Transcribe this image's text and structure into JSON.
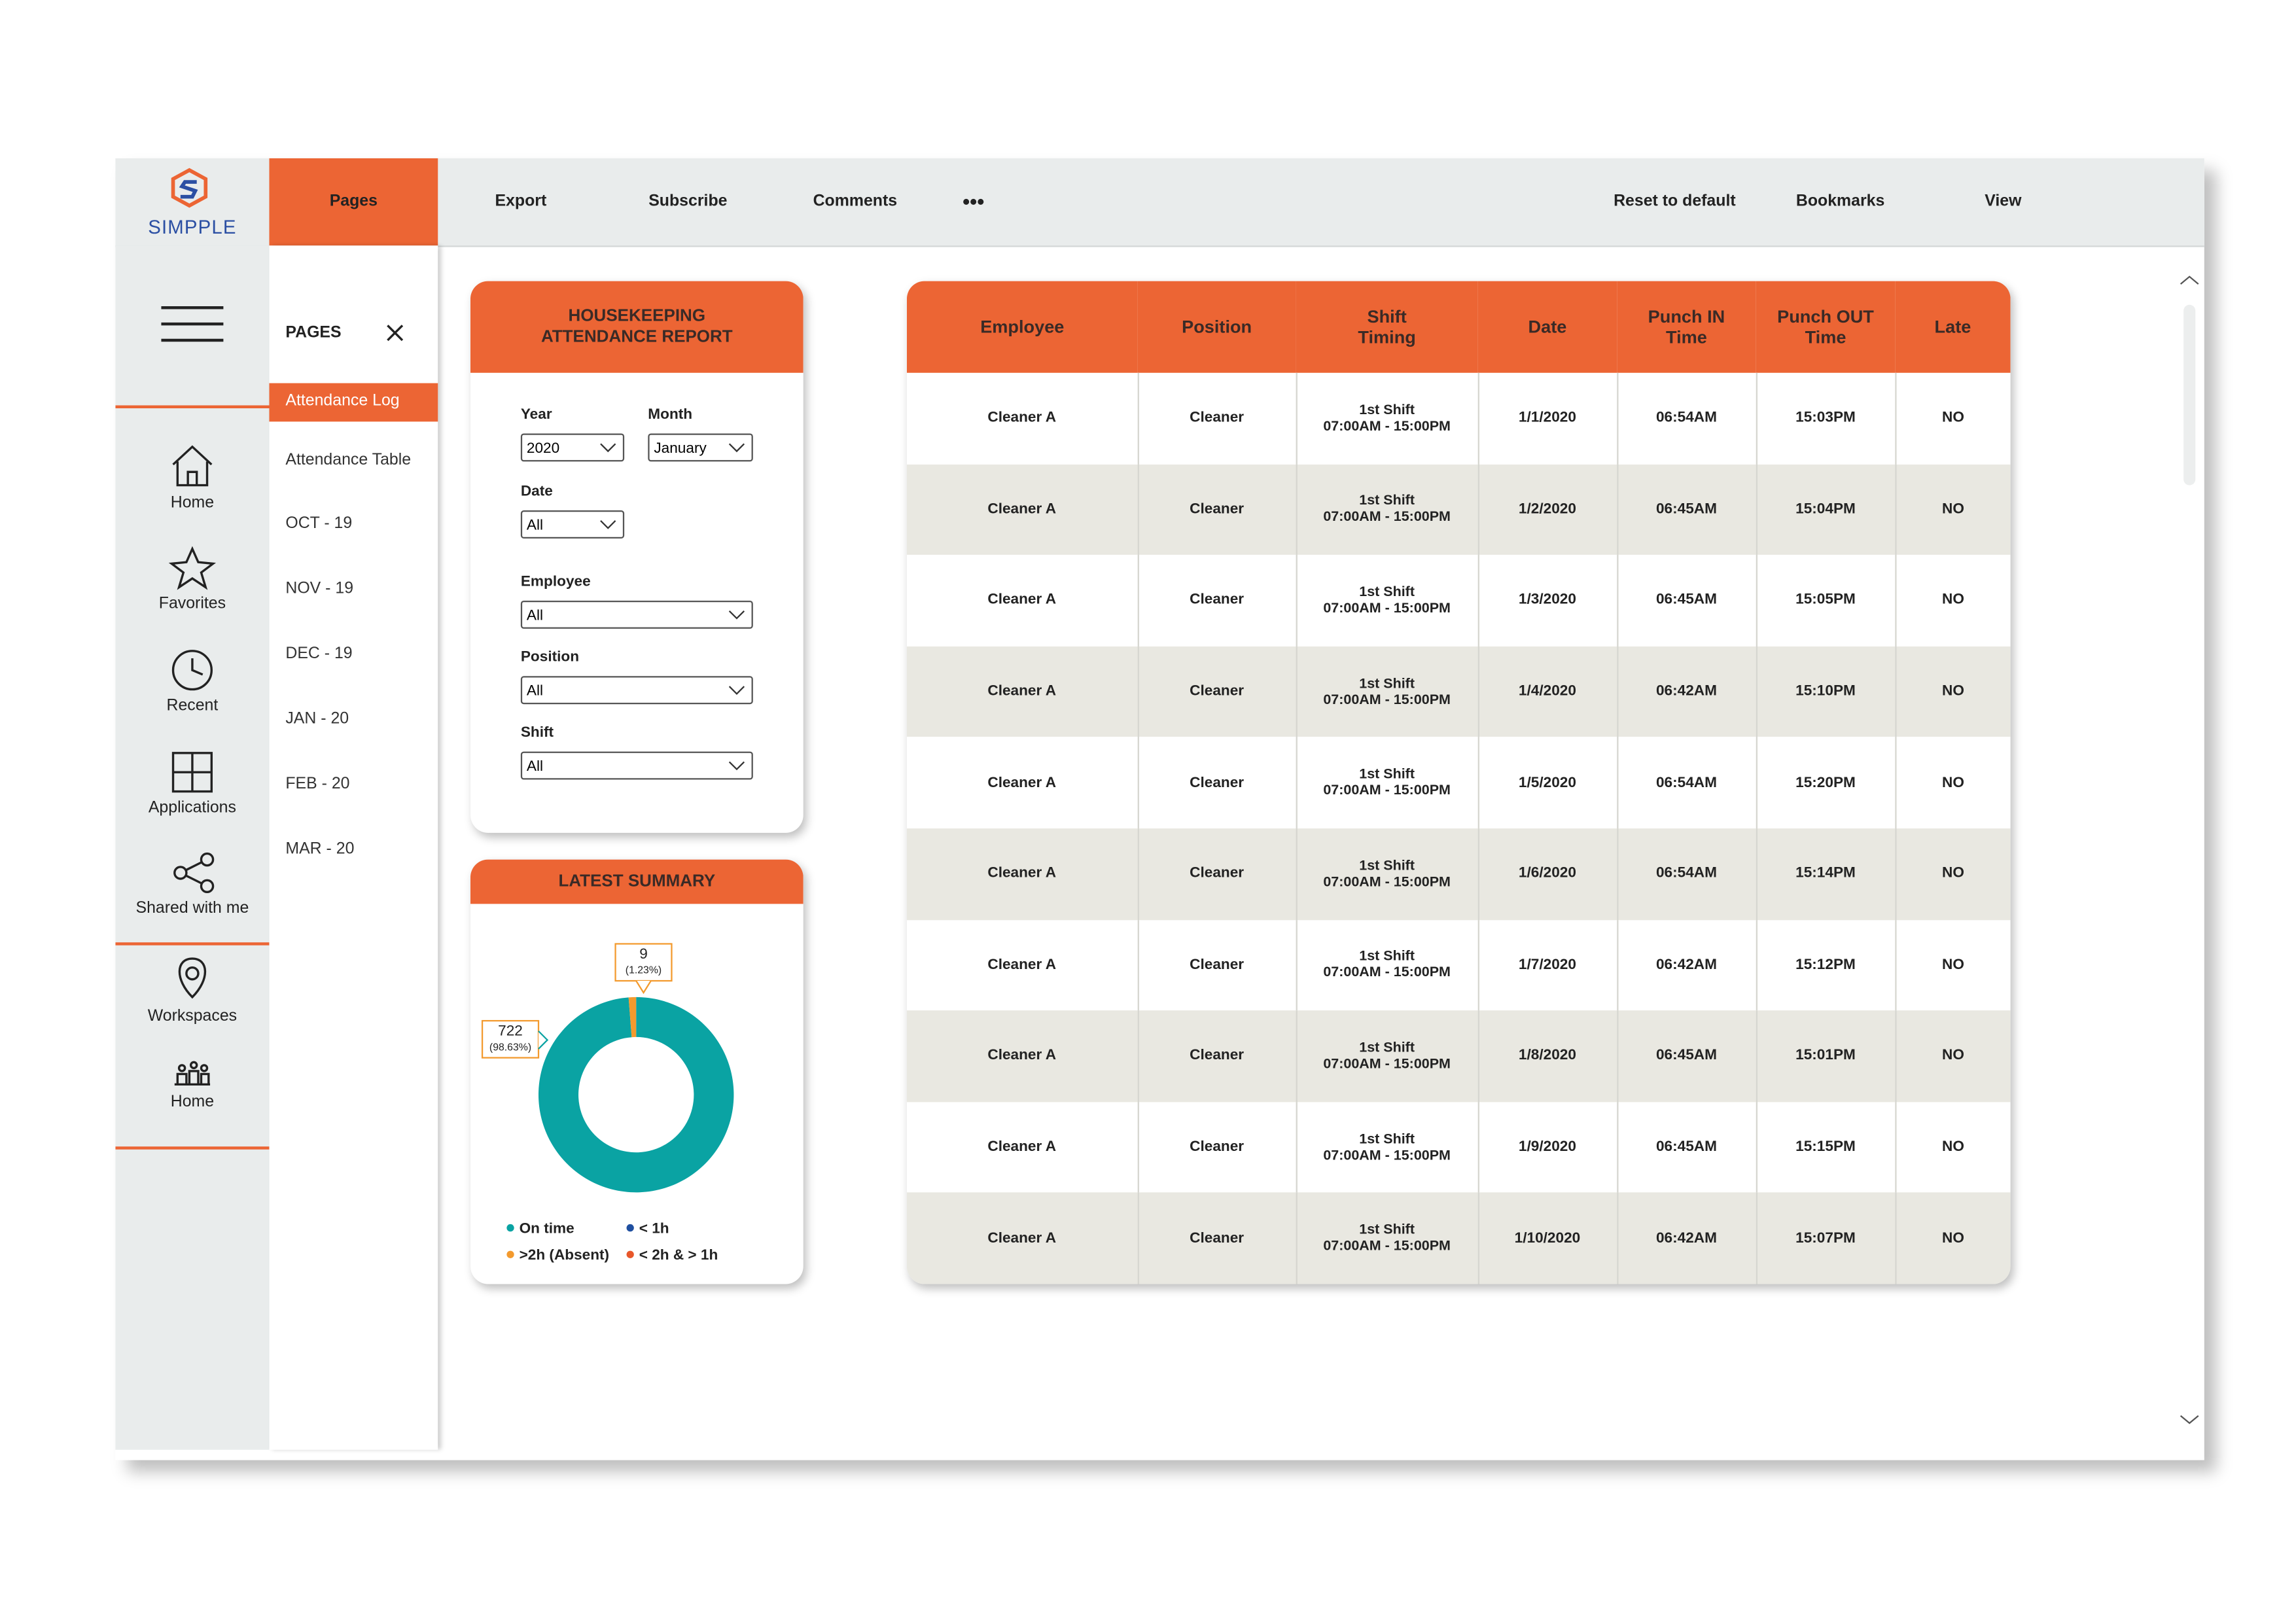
{
  "header": {
    "brand": "SIMPPLE",
    "tabs": [
      "Pages",
      "Export",
      "Subscribe",
      "Comments",
      "•••",
      "Reset to default",
      "Bookmarks",
      "View"
    ]
  },
  "sidebar": {
    "items": [
      "Home",
      "Favorites",
      "Recent",
      "Applications",
      "Shared with me",
      "Workspaces",
      "Home"
    ]
  },
  "pages_panel": {
    "title": "PAGES",
    "items": [
      "Attendance Log",
      "Attendance Table",
      "OCT - 19",
      "NOV - 19",
      "DEC - 19",
      "JAN - 20",
      "FEB - 20",
      "MAR - 20"
    ]
  },
  "filters": {
    "title": "HOUSEKEEPING\nATTENDANCE REPORT",
    "fields": [
      {
        "label": "Year",
        "value": "2020"
      },
      {
        "label": "Month",
        "value": "January"
      },
      {
        "label": "Date",
        "value": "All"
      },
      {
        "label": "Employee",
        "value": "All"
      },
      {
        "label": "Position",
        "value": "All"
      },
      {
        "label": "Shift",
        "value": "All"
      }
    ]
  },
  "summary": {
    "title": "LATEST SUMMARY",
    "chart_data": {
      "type": "donut",
      "categories": [
        "On time",
        "< 1h",
        ">2h (Absent)",
        "< 2h & > 1h"
      ],
      "colors": [
        "#0aa3a3",
        "#1f4fa0",
        "#f39a2e",
        "#e8572a"
      ],
      "values": [
        722,
        null,
        9,
        null
      ],
      "percent_labels": [
        "(98.63%)",
        null,
        "(1.23%)",
        null
      ]
    }
  },
  "table": {
    "columns": [
      "Employee",
      "Position",
      "Shift\nTiming",
      "Date",
      "Punch IN\nTime",
      "Punch OUT\nTime",
      "Late"
    ],
    "rows": [
      [
        "Cleaner A",
        "Cleaner",
        "1st Shift\n07:00AM - 15:00PM",
        "1/1/2020",
        "06:54AM",
        "15:03PM",
        "NO"
      ],
      [
        "Cleaner A",
        "Cleaner",
        "1st Shift\n07:00AM - 15:00PM",
        "1/2/2020",
        "06:45AM",
        "15:04PM",
        "NO"
      ],
      [
        "Cleaner A",
        "Cleaner",
        "1st Shift\n07:00AM - 15:00PM",
        "1/3/2020",
        "06:45AM",
        "15:05PM",
        "NO"
      ],
      [
        "Cleaner A",
        "Cleaner",
        "1st Shift\n07:00AM - 15:00PM",
        "1/4/2020",
        "06:42AM",
        "15:10PM",
        "NO"
      ],
      [
        "Cleaner A",
        "Cleaner",
        "1st Shift\n07:00AM - 15:00PM",
        "1/5/2020",
        "06:54AM",
        "15:20PM",
        "NO"
      ],
      [
        "Cleaner A",
        "Cleaner",
        "1st Shift\n07:00AM - 15:00PM",
        "1/6/2020",
        "06:54AM",
        "15:14PM",
        "NO"
      ],
      [
        "Cleaner A",
        "Cleaner",
        "1st Shift\n07:00AM - 15:00PM",
        "1/7/2020",
        "06:42AM",
        "15:12PM",
        "NO"
      ],
      [
        "Cleaner A",
        "Cleaner",
        "1st Shift\n07:00AM - 15:00PM",
        "1/8/2020",
        "06:45AM",
        "15:01PM",
        "NO"
      ],
      [
        "Cleaner A",
        "Cleaner",
        "1st Shift\n07:00AM - 15:00PM",
        "1/9/2020",
        "06:45AM",
        "15:15PM",
        "NO"
      ],
      [
        "Cleaner A",
        "Cleaner",
        "1st Shift\n07:00AM - 15:00PM",
        "1/10/2020",
        "06:42AM",
        "15:07PM",
        "NO"
      ]
    ]
  }
}
